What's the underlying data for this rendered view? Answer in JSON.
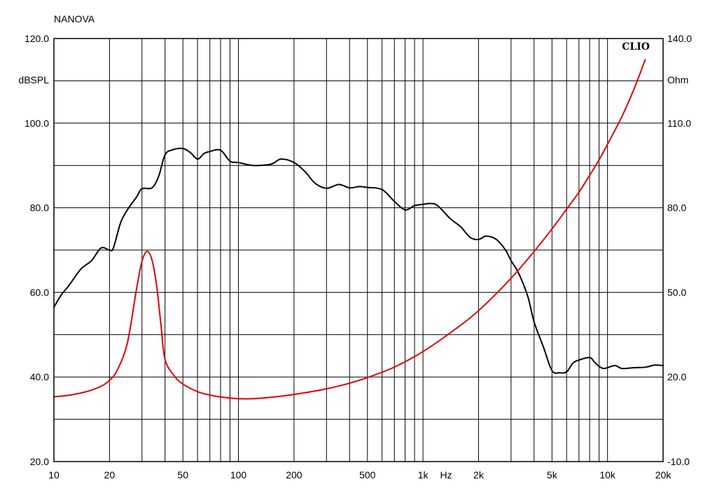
{
  "chart_data": {
    "type": "line",
    "title": "NANOVA",
    "logo": "CLIO",
    "xlabel": "Hz",
    "x_scale": "log",
    "xlim": [
      10,
      20000
    ],
    "x_ticks": [
      10,
      20,
      50,
      100,
      200,
      500,
      1000,
      2000,
      5000,
      10000,
      20000
    ],
    "x_tick_labels": [
      "10",
      "20",
      "50",
      "100",
      "200",
      "500",
      "1k",
      "2k",
      "5k",
      "10k",
      "20k"
    ],
    "left_axis": {
      "unit": "dBSPL",
      "ylim": [
        20,
        120
      ],
      "ticks": [
        20,
        40,
        60,
        80,
        100,
        120
      ],
      "tick_labels": [
        "20.0",
        "40.0",
        "60.0",
        "80.0",
        "100.0",
        "120.0"
      ]
    },
    "right_axis": {
      "unit": "Ohm",
      "ylim": [
        -10,
        140
      ],
      "ticks": [
        -10,
        20,
        50,
        80,
        110,
        140
      ],
      "tick_labels": [
        "-10.0",
        "20.0",
        "50.0",
        "80.0",
        "110.0",
        "140.0"
      ]
    },
    "grid": true,
    "series": [
      {
        "axis": "left",
        "color": "#000000",
        "x": [
          10,
          11,
          12,
          14,
          16,
          18,
          20,
          21,
          23,
          25,
          28,
          30,
          34,
          37,
          40,
          44,
          50,
          55,
          60,
          65,
          70,
          80,
          90,
          100,
          120,
          150,
          170,
          200,
          230,
          260,
          300,
          350,
          400,
          450,
          500,
          600,
          700,
          800,
          900,
          1000,
          1100,
          1200,
          1400,
          1600,
          1800,
          2000,
          2200,
          2500,
          2800,
          3000,
          3300,
          3700,
          4000,
          4500,
          5000,
          5500,
          6000,
          6500,
          7000,
          8000,
          8500,
          9000,
          9500,
          10000,
          11000,
          12000,
          14000,
          16000,
          18000,
          20000
        ],
        "y": [
          56.5,
          59.5,
          61.5,
          65.5,
          67.5,
          70.5,
          70.0,
          70.5,
          76.5,
          79.5,
          82.5,
          84.5,
          84.7,
          87.5,
          92.5,
          93.7,
          94.0,
          93.0,
          91.5,
          92.8,
          93.3,
          93.6,
          91.0,
          90.7,
          90.0,
          90.3,
          91.5,
          90.7,
          88.5,
          85.8,
          84.6,
          85.5,
          84.7,
          85.0,
          84.8,
          84.3,
          81.5,
          79.5,
          80.5,
          80.8,
          81.0,
          80.5,
          77.5,
          75.5,
          73.0,
          72.5,
          73.3,
          72.5,
          70.0,
          67.5,
          64.5,
          59.0,
          53.0,
          47.0,
          41.5,
          41.0,
          41.2,
          43.3,
          44.0,
          44.6,
          43.5,
          42.5,
          42.0,
          42.2,
          42.7,
          42.0,
          42.2,
          42.3,
          42.8,
          42.7
        ]
      },
      {
        "axis": "right",
        "color": "#e00000",
        "x": [
          10,
          12,
          15,
          18,
          20,
          22,
          25,
          28,
          30,
          32,
          34,
          36,
          38,
          40,
          45,
          50,
          60,
          70,
          80,
          100,
          120,
          150,
          200,
          300,
          400,
          500,
          700,
          1000,
          1500,
          2000,
          3000,
          4000,
          5000,
          6000,
          7000,
          8000,
          9000,
          10000,
          12000,
          14000,
          16000
        ],
        "y": [
          13.0,
          13.5,
          14.8,
          16.7,
          18.8,
          22.3,
          32.0,
          51.0,
          61.0,
          64.5,
          61.5,
          52.5,
          38.7,
          26.2,
          20.3,
          17.5,
          14.8,
          13.6,
          12.9,
          12.3,
          12.3,
          12.8,
          13.8,
          15.8,
          17.8,
          19.8,
          23.5,
          29.0,
          37.0,
          43.5,
          55.0,
          64.5,
          72.5,
          79.5,
          85.5,
          91.5,
          97.0,
          102.5,
          112.5,
          122.5,
          132.5
        ]
      }
    ]
  }
}
